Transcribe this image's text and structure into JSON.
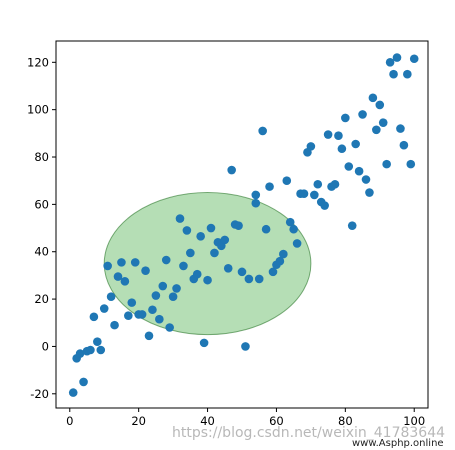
{
  "chart_data": {
    "type": "scatter",
    "title": "",
    "xlabel": "",
    "ylabel": "",
    "xlim": [
      -4,
      104
    ],
    "ylim": [
      -26,
      129
    ],
    "xticks": [
      0,
      20,
      40,
      60,
      80,
      100
    ],
    "yticks": [
      -20,
      0,
      20,
      40,
      60,
      80,
      100,
      120
    ],
    "grid": false,
    "legend": "none",
    "point_color": "#1f77b4",
    "ellipse": {
      "center": [
        40,
        35
      ],
      "semi_axis_x": 30,
      "semi_axis_y": 30,
      "fill_color": "#2ca02c",
      "edge_color": "#1a6b1a",
      "opacity": 0.35
    },
    "points": [
      [
        1,
        -19.5
      ],
      [
        2,
        -5
      ],
      [
        3,
        -3
      ],
      [
        4,
        -15
      ],
      [
        5,
        -2
      ],
      [
        6,
        -1.5
      ],
      [
        7,
        12.5
      ],
      [
        8,
        2
      ],
      [
        9,
        -1.5
      ],
      [
        10,
        16
      ],
      [
        11,
        34
      ],
      [
        12,
        21
      ],
      [
        13,
        9
      ],
      [
        14,
        29.5
      ],
      [
        15,
        35.5
      ],
      [
        16,
        27.5
      ],
      [
        17,
        13
      ],
      [
        18,
        18.5
      ],
      [
        19,
        35.5
      ],
      [
        20,
        13.5
      ],
      [
        21,
        13.5
      ],
      [
        22,
        32
      ],
      [
        23,
        4.5
      ],
      [
        24,
        15.5
      ],
      [
        25,
        21.5
      ],
      [
        26,
        11.5
      ],
      [
        27,
        25.5
      ],
      [
        28,
        36.5
      ],
      [
        29,
        8
      ],
      [
        30,
        21
      ],
      [
        31,
        24.5
      ],
      [
        32,
        54
      ],
      [
        33,
        34
      ],
      [
        34,
        49
      ],
      [
        35,
        39.5
      ],
      [
        36,
        28.5
      ],
      [
        37,
        30.5
      ],
      [
        38,
        46.5
      ],
      [
        39,
        1.5
      ],
      [
        40,
        28
      ],
      [
        41,
        50
      ],
      [
        42,
        39.5
      ],
      [
        43,
        44
      ],
      [
        44,
        42.5
      ],
      [
        45,
        45
      ],
      [
        46,
        33
      ],
      [
        47,
        74.5
      ],
      [
        48,
        51.5
      ],
      [
        49,
        51
      ],
      [
        50,
        31.5
      ],
      [
        51,
        0
      ],
      [
        52,
        28.5
      ],
      [
        54,
        60.5
      ],
      [
        54,
        64
      ],
      [
        55,
        28.5
      ],
      [
        56,
        91
      ],
      [
        57,
        49.5
      ],
      [
        58,
        67.5
      ],
      [
        59,
        31.5
      ],
      [
        60,
        34.5
      ],
      [
        61,
        36
      ],
      [
        62,
        39
      ],
      [
        63,
        70
      ],
      [
        64,
        52.5
      ],
      [
        65,
        49.5
      ],
      [
        66,
        43.5
      ],
      [
        67,
        64.5
      ],
      [
        68,
        64.5
      ],
      [
        69,
        82
      ],
      [
        70,
        84.5
      ],
      [
        71,
        64
      ],
      [
        72,
        68.5
      ],
      [
        73,
        61
      ],
      [
        74,
        59.5
      ],
      [
        75,
        89.5
      ],
      [
        76,
        67.5
      ],
      [
        77,
        68.5
      ],
      [
        78,
        89
      ],
      [
        79,
        83.5
      ],
      [
        80,
        96.5
      ],
      [
        81,
        76
      ],
      [
        82,
        51
      ],
      [
        83,
        85.5
      ],
      [
        84,
        74
      ],
      [
        85,
        98
      ],
      [
        86,
        70.5
      ],
      [
        87,
        65
      ],
      [
        88,
        105
      ],
      [
        89,
        91.5
      ],
      [
        90,
        102
      ],
      [
        91,
        94.5
      ],
      [
        92,
        77
      ],
      [
        93,
        120
      ],
      [
        94,
        115
      ],
      [
        95,
        122
      ],
      [
        96,
        92
      ],
      [
        97,
        85
      ],
      [
        98,
        115
      ],
      [
        99,
        77
      ],
      [
        100,
        121.5
      ]
    ]
  },
  "watermark": {
    "url_text": "https://blog.csdn.net/weixin_41783644",
    "site_text": "www.Asphp.online"
  }
}
